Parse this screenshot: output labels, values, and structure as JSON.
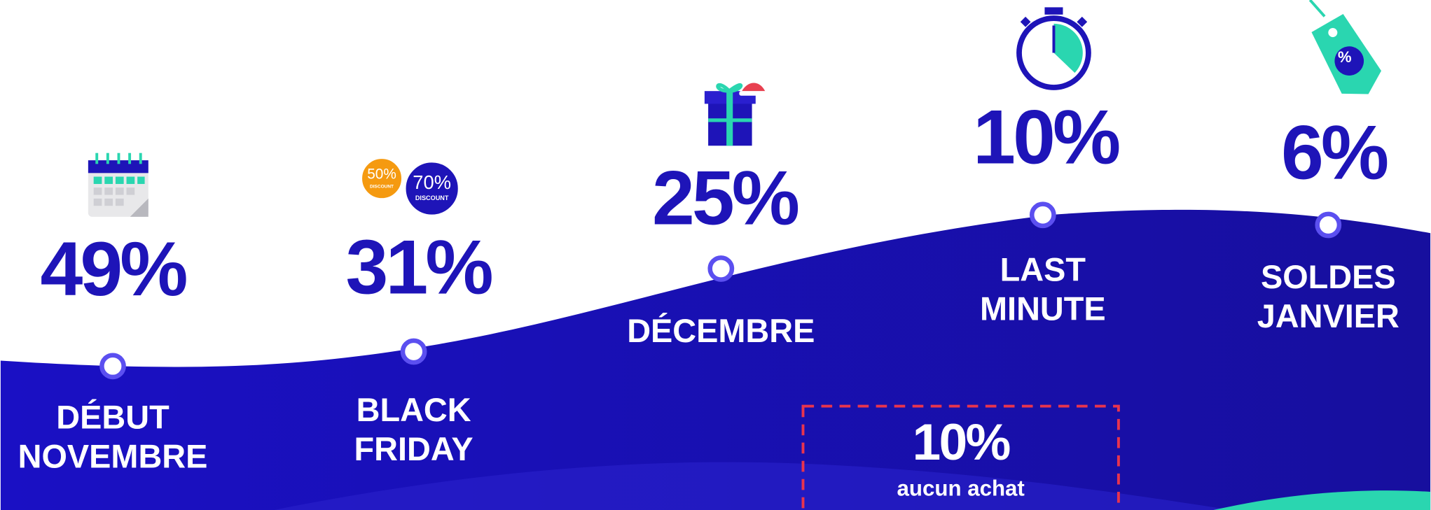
{
  "stages": [
    {
      "percent": "49%",
      "label_lines": [
        "DÉBUT",
        "NOVEMBRE"
      ]
    },
    {
      "percent": "31%",
      "label_lines": [
        "BLACK",
        "FRIDAY"
      ]
    },
    {
      "percent": "25%",
      "label_lines": [
        "DÉCEMBRE"
      ]
    },
    {
      "percent": "10%",
      "label_lines": [
        "LAST",
        "MINUTE"
      ]
    },
    {
      "percent": "6%",
      "label_lines": [
        "SOLDES",
        "JANVIER"
      ]
    }
  ],
  "badges": [
    {
      "percent": "50%",
      "caption": "DISCOUNT"
    },
    {
      "percent": "70%",
      "caption": "DISCOUNT"
    }
  ],
  "tag_symbol": "%",
  "no_purchase": {
    "percent": "10%",
    "label": "aucun achat"
  }
}
